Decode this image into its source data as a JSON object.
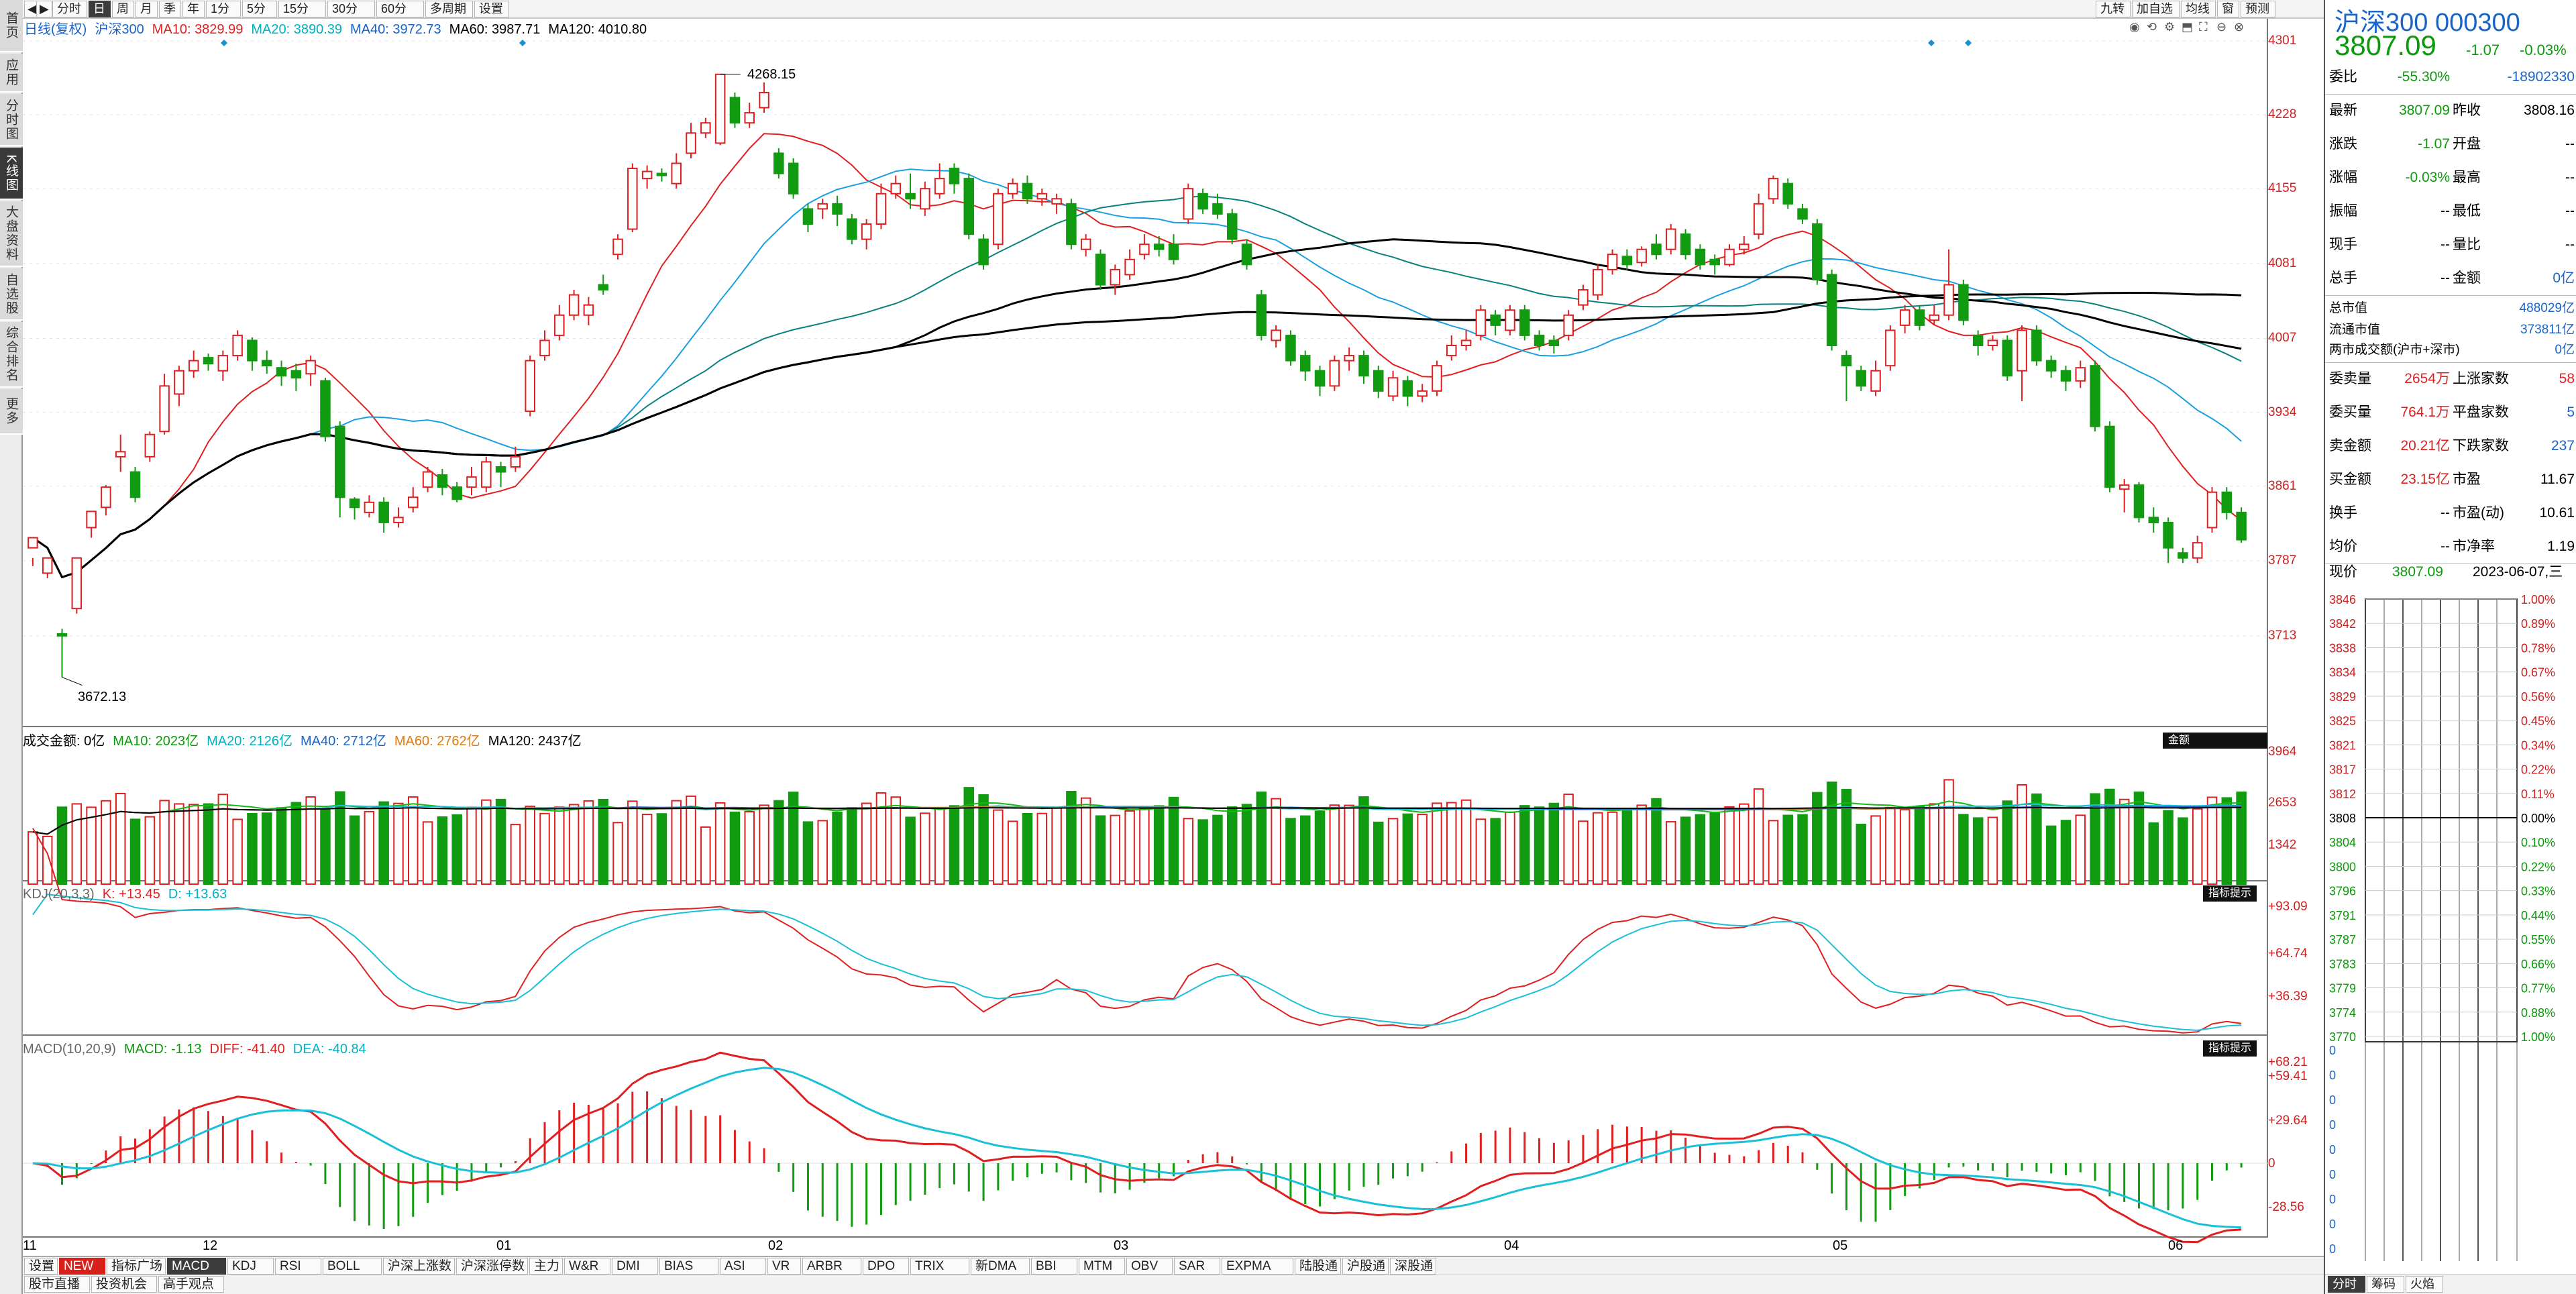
{
  "nav": [
    "首页",
    "应用",
    "分时图",
    "K线图",
    "大盘资料",
    "自选股",
    "综合排名",
    "更多"
  ],
  "periods": [
    "分时",
    "日",
    "周",
    "月",
    "季",
    "年",
    "1分",
    "5分",
    "15分",
    "30分",
    "60分",
    "多周期",
    "设置"
  ],
  "right_buttons": [
    "九转",
    "加自选",
    "均线",
    "窗",
    "预测"
  ],
  "main_legend": {
    "name": "日线(复权)",
    "index": "沪深300",
    "ma10": "MA10: 3829.99",
    "ma20": "MA20: 3890.39",
    "ma40": "MA40: 3972.73",
    "ma60": "MA60: 3987.71",
    "ma120": "MA120: 4010.80"
  },
  "price_axis": [
    "4301",
    "4228",
    "4155",
    "4081",
    "4007",
    "3934",
    "3861",
    "3787",
    "3713"
  ],
  "high_label": "4268.15",
  "low_label": "3672.13",
  "vol_legend": {
    "title": "成交金额: 0亿",
    "ma10": "MA10: 2023亿",
    "ma20": "MA20: 2126亿",
    "ma40": "MA40: 2712亿",
    "ma60": "MA60: 2762亿",
    "ma120": "MA120: 2437亿",
    "badge": "金额"
  },
  "vol_axis": [
    "3964",
    "2653",
    "1342"
  ],
  "kdj_legend": {
    "title": "KDJ(20,3,3)",
    "k": "K: +13.45",
    "d": "D: +13.63",
    "badge": "指标提示"
  },
  "kdj_axis": [
    "+93.09",
    "+64.74",
    "+36.39"
  ],
  "macd_legend": {
    "title": "MACD(10,20,9)",
    "macd": "MACD: -1.13",
    "diff": "DIFF: -41.40",
    "dea": "DEA: -40.84",
    "badge": "指标提示"
  },
  "macd_axis": [
    "+68.21",
    "+59.41",
    "+29.64",
    "0",
    "-28.56"
  ],
  "x_labels": [
    "11",
    "12",
    "01",
    "02",
    "03",
    "04",
    "05",
    "06"
  ],
  "indicator_tabs": [
    "设置",
    "NEW",
    "指标广场",
    "MACD",
    "KDJ",
    "RSI",
    "BOLL",
    "沪深上涨数",
    "沪深涨停数",
    "主力",
    "W&R",
    "DMI",
    "BIAS",
    "ASI",
    "VR",
    "ARBR",
    "DPO",
    "TRIX",
    "新DMA",
    "BBI",
    "MTM",
    "OBV",
    "SAR",
    "EXPMA",
    "陆股通",
    "沪股通",
    "深股通"
  ],
  "bottom_links": [
    "股市直播",
    "投资机会",
    "高手观点"
  ],
  "quote": {
    "title": "沪深300 000300",
    "price": "3807.09",
    "change": "-1.07",
    "pct": "-0.03%",
    "rows": [
      [
        "委比",
        "-55.30%",
        "",
        "-18902330"
      ],
      [
        "最新",
        "3807.09",
        "昨收",
        "3808.16"
      ],
      [
        "涨跌",
        "-1.07",
        "开盘",
        "--"
      ],
      [
        "涨幅",
        "-0.03%",
        "最高",
        "--"
      ],
      [
        "振幅",
        "--",
        "最低",
        "--"
      ],
      [
        "现手",
        "--",
        "量比",
        "--"
      ],
      [
        "总手",
        "--",
        "金额",
        "0亿"
      ],
      [
        "总市值",
        "",
        "",
        "488029亿"
      ],
      [
        "流通市值",
        "",
        "",
        "373811亿"
      ],
      [
        "两市成交额(沪市+深市)",
        "",
        "",
        "0亿"
      ],
      [
        "委卖量",
        "2654万",
        "上涨家数",
        "58"
      ],
      [
        "委买量",
        "764.1万",
        "平盘家数",
        "5"
      ],
      [
        "卖金额",
        "20.21亿",
        "下跌家数",
        "237"
      ],
      [
        "买金额",
        "23.15亿",
        "市盈",
        "11.67"
      ],
      [
        "换手",
        "--",
        "市盈(动)",
        "10.61"
      ],
      [
        "均价",
        "--",
        "市净率",
        "1.19"
      ]
    ],
    "now_label": "现价",
    "now_price": "3807.09",
    "date": "2023-06-07,三",
    "mini_left": [
      "3846",
      "3842",
      "3838",
      "3834",
      "3829",
      "3825",
      "3821",
      "3817",
      "3812",
      "3808",
      "3804",
      "3800",
      "3796",
      "3791",
      "3787",
      "3783",
      "3779",
      "3774",
      "3770",
      "0",
      "0",
      "0",
      "0",
      "0",
      "0",
      "0",
      "0",
      "0"
    ],
    "mini_right": [
      "1.00%",
      "0.89%",
      "0.78%",
      "0.67%",
      "0.56%",
      "0.45%",
      "0.34%",
      "0.22%",
      "0.11%",
      "0.00%",
      "0.10%",
      "0.22%",
      "0.33%",
      "0.44%",
      "0.55%",
      "0.66%",
      "0.77%",
      "0.88%",
      "1.00%"
    ],
    "tabs": [
      "分时",
      "筹码",
      "火焰"
    ]
  },
  "chart_data": {
    "type": "candlestick",
    "y_range": [
      3672.13,
      4301
    ],
    "ohlc": [
      [
        3800,
        3810,
        3790,
        3782
      ],
      [
        3775,
        3790,
        3770,
        3785
      ],
      [
        3715,
        3713,
        3720,
        3672
      ],
      [
        3740,
        3790,
        3780,
        3735
      ],
      [
        3820,
        3836,
        3835,
        3810
      ],
      [
        3840,
        3860,
        3862,
        3832
      ],
      [
        3890,
        3895,
        3912,
        3875
      ],
      [
        3875,
        3850,
        3880,
        3845
      ],
      [
        3890,
        3912,
        3915,
        3885
      ],
      [
        3915,
        3960,
        3972,
        3912
      ],
      [
        3952,
        3975,
        3980,
        3940
      ],
      [
        3975,
        3985,
        3995,
        3968
      ],
      [
        3988,
        3982,
        3992,
        3975
      ],
      [
        3975,
        3990,
        3995,
        3965
      ],
      [
        3990,
        4010,
        4015,
        3985
      ],
      [
        4005,
        3985,
        4008,
        3975
      ],
      [
        3985,
        3980,
        3995,
        3972
      ],
      [
        3978,
        3970,
        3985,
        3960
      ],
      [
        3975,
        3968,
        3982,
        3955
      ],
      [
        3972,
        3985,
        3990,
        3960
      ],
      [
        3965,
        3910,
        3968,
        3905
      ],
      [
        3920,
        3850,
        3925,
        3830
      ],
      [
        3848,
        3840,
        3850,
        3828
      ],
      [
        3835,
        3845,
        3852,
        3830
      ],
      [
        3845,
        3825,
        3850,
        3815
      ],
      [
        3825,
        3830,
        3840,
        3820
      ],
      [
        3840,
        3850,
        3860,
        3835
      ],
      [
        3860,
        3875,
        3880,
        3855
      ],
      [
        3872,
        3860,
        3878,
        3852
      ],
      [
        3860,
        3848,
        3865,
        3845
      ],
      [
        3860,
        3870,
        3880,
        3852
      ],
      [
        3860,
        3885,
        3890,
        3855
      ],
      [
        3880,
        3875,
        3885,
        3860
      ],
      [
        3880,
        3890,
        3900,
        3875
      ],
      [
        3935,
        3985,
        3990,
        3930
      ],
      [
        3990,
        4005,
        4015,
        3985
      ],
      [
        4010,
        4030,
        4040,
        4005
      ],
      [
        4030,
        4050,
        4055,
        4025
      ],
      [
        4030,
        4040,
        4048,
        4020
      ],
      [
        4060,
        4055,
        4070,
        4050
      ],
      [
        4090,
        4105,
        4110,
        4085
      ],
      [
        4115,
        4175,
        4180,
        4112
      ],
      [
        4165,
        4172,
        4178,
        4155
      ],
      [
        4170,
        4168,
        4175,
        4162
      ],
      [
        4160,
        4180,
        4190,
        4155
      ],
      [
        4190,
        4210,
        4220,
        4185
      ],
      [
        4210,
        4220,
        4225,
        4205
      ],
      [
        4200,
        4268,
        4268.15,
        4198
      ],
      [
        4245,
        4220,
        4250,
        4215
      ],
      [
        4220,
        4230,
        4240,
        4215
      ],
      [
        4235,
        4250,
        4260,
        4230
      ],
      [
        4190,
        4170,
        4195,
        4165
      ],
      [
        4180,
        4150,
        4185,
        4145
      ],
      [
        4135,
        4120,
        4140,
        4112
      ],
      [
        4135,
        4140,
        4145,
        4125
      ],
      [
        4140,
        4130,
        4148,
        4118
      ],
      [
        4125,
        4105,
        4130,
        4100
      ],
      [
        4105,
        4120,
        4125,
        4095
      ],
      [
        4120,
        4150,
        4160,
        4115
      ],
      [
        4150,
        4160,
        4168,
        4145
      ],
      [
        4150,
        4145,
        4170,
        4135
      ],
      [
        4135,
        4155,
        4162,
        4128
      ],
      [
        4150,
        4165,
        4180,
        4145
      ],
      [
        4175,
        4160,
        4180,
        4150
      ],
      [
        4165,
        4110,
        4170,
        4105
      ],
      [
        4105,
        4080,
        4110,
        4075
      ],
      [
        4100,
        4150,
        4155,
        4095
      ],
      [
        4150,
        4160,
        4165,
        4145
      ],
      [
        4160,
        4145,
        4168,
        4140
      ],
      [
        4145,
        4150,
        4155,
        4138
      ],
      [
        4140,
        4145,
        4150,
        4130
      ],
      [
        4140,
        4100,
        4145,
        4095
      ],
      [
        4095,
        4105,
        4110,
        4088
      ],
      [
        4090,
        4060,
        4095,
        4055
      ],
      [
        4060,
        4075,
        4080,
        4050
      ],
      [
        4070,
        4085,
        4095,
        4065
      ],
      [
        4090,
        4100,
        4110,
        4085
      ],
      [
        4100,
        4095,
        4108,
        4088
      ],
      [
        4100,
        4085,
        4110,
        4080
      ],
      [
        4125,
        4155,
        4160,
        4120
      ],
      [
        4150,
        4135,
        4155,
        4130
      ],
      [
        4140,
        4130,
        4150,
        4125
      ],
      [
        4130,
        4105,
        4135,
        4100
      ],
      [
        4100,
        4080,
        4105,
        4075
      ],
      [
        4050,
        4010,
        4055,
        4005
      ],
      [
        4005,
        4015,
        4020,
        3998
      ],
      [
        4010,
        3985,
        4015,
        3980
      ],
      [
        3990,
        3975,
        3995,
        3965
      ],
      [
        3975,
        3960,
        3980,
        3950
      ],
      [
        3960,
        3985,
        3990,
        3955
      ],
      [
        3985,
        3990,
        3998,
        3975
      ],
      [
        3990,
        3970,
        3995,
        3962
      ],
      [
        3975,
        3955,
        3980,
        3948
      ],
      [
        3950,
        3968,
        3975,
        3945
      ],
      [
        3965,
        3950,
        3970,
        3940
      ],
      [
        3950,
        3955,
        3962,
        3944
      ],
      [
        3955,
        3980,
        3985,
        3950
      ],
      [
        3990,
        4000,
        4010,
        3985
      ],
      [
        4000,
        4005,
        4015,
        3995
      ],
      [
        4010,
        4035,
        4040,
        4005
      ],
      [
        4030,
        4020,
        4035,
        4010
      ],
      [
        4015,
        4035,
        4040,
        4010
      ],
      [
        4035,
        4010,
        4040,
        4005
      ],
      [
        4010,
        4000,
        4015,
        3995
      ],
      [
        4005,
        4000,
        4010,
        3992
      ],
      [
        4010,
        4030,
        4035,
        4005
      ],
      [
        4040,
        4055,
        4060,
        4035
      ],
      [
        4050,
        4075,
        4080,
        4045
      ],
      [
        4075,
        4090,
        4095,
        4070
      ],
      [
        4088,
        4080,
        4095,
        4075
      ],
      [
        4082,
        4095,
        4098,
        4078
      ],
      [
        4100,
        4090,
        4110,
        4085
      ],
      [
        4095,
        4115,
        4120,
        4090
      ],
      [
        4110,
        4090,
        4115,
        4085
      ],
      [
        4095,
        4080,
        4100,
        4075
      ],
      [
        4085,
        4080,
        4090,
        4070
      ],
      [
        4080,
        4095,
        4100,
        4078
      ],
      [
        4095,
        4100,
        4108,
        4090
      ],
      [
        4110,
        4140,
        4150,
        4105
      ],
      [
        4145,
        4165,
        4168,
        4140
      ],
      [
        4160,
        4140,
        4165,
        4135
      ],
      [
        4135,
        4125,
        4140,
        4120
      ],
      [
        4120,
        4065,
        4125,
        4060
      ],
      [
        4070,
        4000,
        4075,
        3995
      ],
      [
        3990,
        3980,
        3995,
        3945
      ],
      [
        3975,
        3960,
        3980,
        3955
      ],
      [
        3955,
        3975,
        3985,
        3950
      ],
      [
        3980,
        4015,
        4020,
        3975
      ],
      [
        4020,
        4035,
        4040,
        4012
      ],
      [
        4035,
        4020,
        4040,
        4015
      ],
      [
        4025,
        4030,
        4040,
        4020
      ],
      [
        4030,
        4060,
        4095,
        4025
      ],
      [
        4060,
        4025,
        4065,
        4020
      ],
      [
        4010,
        4000,
        4015,
        3990
      ],
      [
        4000,
        4005,
        4010,
        3995
      ],
      [
        4005,
        3970,
        4010,
        3965
      ],
      [
        3975,
        4015,
        4020,
        3945
      ],
      [
        4015,
        3985,
        4020,
        3980
      ],
      [
        3985,
        3975,
        3990,
        3968
      ],
      [
        3975,
        3965,
        3980,
        3955
      ],
      [
        3965,
        3978,
        3985,
        3958
      ],
      [
        3980,
        3920,
        3985,
        3915
      ],
      [
        3920,
        3860,
        3925,
        3855
      ],
      [
        3858,
        3862,
        3868,
        3835
      ],
      [
        3862,
        3830,
        3865,
        3825
      ],
      [
        3830,
        3825,
        3840,
        3815
      ],
      [
        3825,
        3800,
        3830,
        3785
      ],
      [
        3795,
        3790,
        3800,
        3785
      ],
      [
        3790,
        3805,
        3812,
        3785
      ],
      [
        3820,
        3855,
        3860,
        3815
      ],
      [
        3855,
        3835,
        3860,
        3828
      ],
      [
        3835,
        3808,
        3840,
        3805
      ]
    ]
  }
}
